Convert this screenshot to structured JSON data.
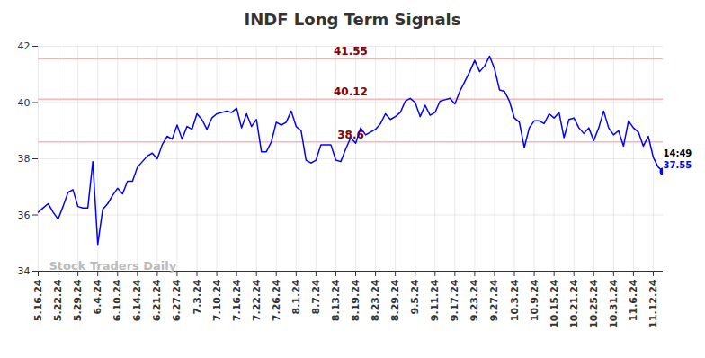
{
  "chart_data": {
    "type": "line",
    "title": "INDF Long Term Signals",
    "categories": [
      "5.16.24",
      null,
      null,
      null,
      "5.22.24",
      null,
      null,
      null,
      "5.29.24",
      null,
      null,
      null,
      "6.4.24",
      null,
      null,
      null,
      "6.10.24",
      null,
      null,
      null,
      "6.14.24",
      null,
      null,
      null,
      "6.21.24",
      null,
      null,
      null,
      "6.27.24",
      null,
      null,
      null,
      "7.3.24",
      null,
      null,
      null,
      "7.10.24",
      null,
      null,
      null,
      "7.16.24",
      null,
      null,
      null,
      "7.22.24",
      null,
      null,
      null,
      "7.26.24",
      null,
      null,
      null,
      "8.1.24",
      null,
      null,
      null,
      "8.7.24",
      null,
      null,
      null,
      "8.13.24",
      null,
      null,
      null,
      "8.19.24",
      null,
      null,
      null,
      "8.23.24",
      null,
      null,
      null,
      "8.29.24",
      null,
      null,
      null,
      "9.5.24",
      null,
      null,
      null,
      "9.11.24",
      null,
      null,
      null,
      "9.17.24",
      null,
      null,
      null,
      "9.23.24",
      null,
      null,
      null,
      "9.27.24",
      null,
      null,
      null,
      "10.3.24",
      null,
      null,
      null,
      "10.9.24",
      null,
      null,
      null,
      "10.15.24",
      null,
      null,
      null,
      "10.21.24",
      null,
      null,
      null,
      "10.25.24",
      null,
      null,
      null,
      "10.31.24",
      null,
      null,
      null,
      "11.6.24",
      null,
      null,
      null,
      "11.12.24",
      null,
      null
    ],
    "values": [
      36.1,
      36.25,
      36.4,
      36.1,
      35.85,
      36.3,
      36.8,
      36.9,
      36.3,
      36.25,
      36.25,
      37.9,
      34.95,
      36.2,
      36.4,
      36.7,
      36.95,
      36.75,
      37.2,
      37.2,
      37.7,
      37.9,
      38.1,
      38.2,
      38.0,
      38.5,
      38.8,
      38.7,
      39.2,
      38.7,
      39.15,
      39.05,
      39.6,
      39.4,
      39.05,
      39.45,
      39.6,
      39.65,
      39.7,
      39.65,
      39.8,
      39.1,
      39.6,
      39.15,
      39.4,
      38.25,
      38.25,
      38.6,
      39.3,
      39.2,
      39.3,
      39.7,
      39.15,
      39.0,
      37.95,
      37.85,
      37.95,
      38.5,
      38.5,
      38.5,
      37.95,
      37.9,
      38.35,
      38.75,
      38.55,
      39.1,
      38.85,
      38.95,
      39.05,
      39.25,
      39.6,
      39.4,
      39.5,
      39.65,
      40.05,
      40.15,
      40.0,
      39.5,
      39.9,
      39.55,
      39.65,
      40.05,
      40.1,
      40.15,
      39.95,
      40.4,
      40.75,
      41.1,
      41.5,
      41.1,
      41.3,
      41.65,
      41.2,
      40.45,
      40.4,
      40.05,
      39.45,
      39.3,
      38.4,
      39.1,
      39.35,
      39.35,
      39.25,
      39.6,
      39.45,
      39.65,
      38.75,
      39.4,
      39.45,
      39.1,
      38.9,
      39.1,
      38.65,
      39.1,
      39.7,
      39.1,
      38.85,
      39.0,
      38.45,
      39.35,
      39.1,
      38.95,
      38.45,
      38.8,
      38.05,
      37.7,
      37.55
    ],
    "color": "#0000ff",
    "ylim": [
      34,
      42
    ],
    "yticks": [
      34,
      36,
      38,
      40,
      42
    ],
    "grid": true,
    "signal_lines": [
      41.55,
      40.12,
      38.6
    ],
    "last_point": {
      "time": "14:49",
      "value": 37.55
    },
    "watermark": "Stock Traders Daily"
  }
}
